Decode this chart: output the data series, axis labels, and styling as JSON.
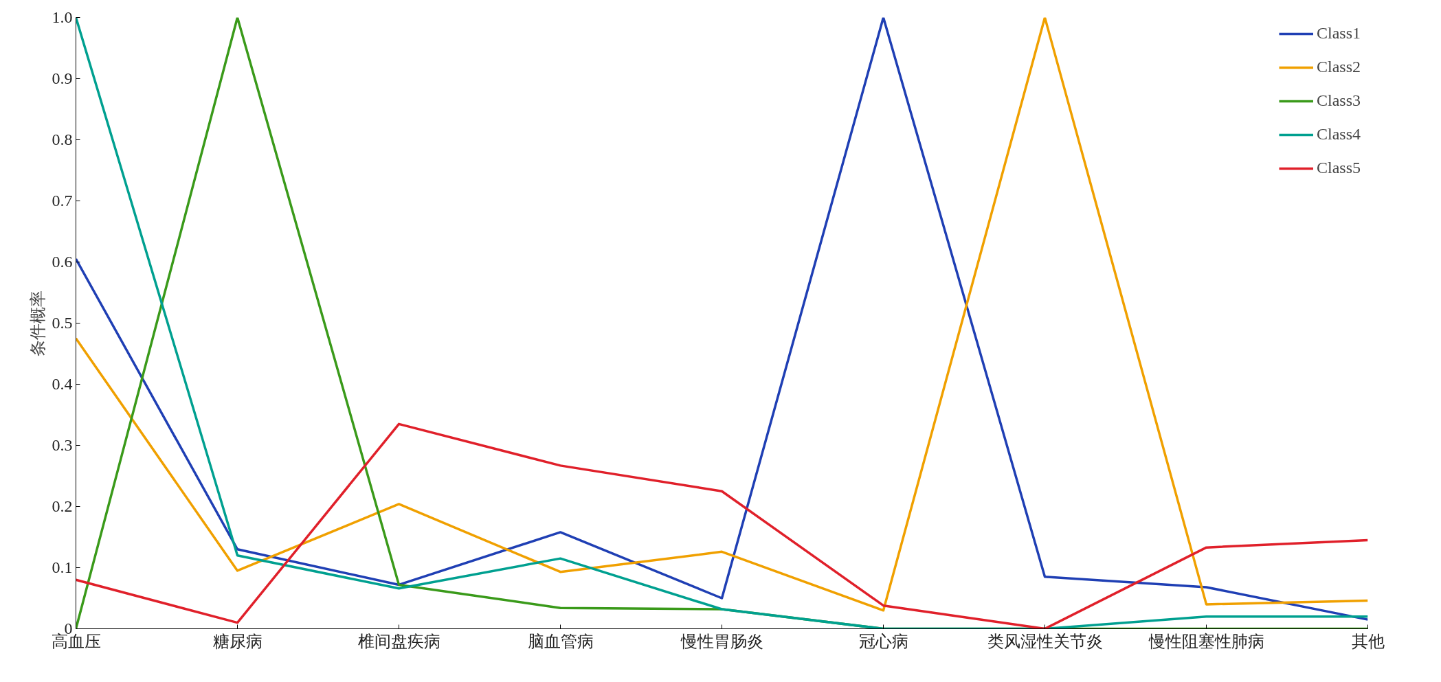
{
  "chart_data": {
    "type": "line",
    "ylabel": "条件概率",
    "categories": [
      "高血压",
      "糖尿病",
      "椎间盘疾病",
      "脑血管病",
      "慢性胃肠炎",
      "冠心病",
      "类风湿性关节炎",
      "慢性阻塞性肺病",
      "其他"
    ],
    "series": [
      {
        "name": "Class1",
        "color": "#1f3fb4",
        "values": [
          0.605,
          0.13,
          0.072,
          0.158,
          0.05,
          1.0,
          0.085,
          0.068,
          0.015
        ]
      },
      {
        "name": "Class2",
        "color": "#f0a000",
        "values": [
          0.475,
          0.095,
          0.204,
          0.093,
          0.126,
          0.03,
          1.0,
          0.04,
          0.046
        ]
      },
      {
        "name": "Class3",
        "color": "#3a9a1a",
        "values": [
          0.0,
          1.0,
          0.072,
          0.034,
          0.032,
          0.0,
          0.0,
          0.0,
          0.0
        ]
      },
      {
        "name": "Class4",
        "color": "#00a090",
        "values": [
          1.0,
          0.12,
          0.066,
          0.115,
          0.032,
          0.0,
          0.0,
          0.02,
          0.02
        ]
      },
      {
        "name": "Class5",
        "color": "#e0202a",
        "values": [
          0.08,
          0.01,
          0.335,
          0.267,
          0.225,
          0.038,
          0.0,
          0.133,
          0.145
        ]
      }
    ],
    "ylim": [
      0,
      1.0
    ],
    "yticks": [
      0,
      0.1,
      0.2,
      0.3,
      0.4,
      0.5,
      0.6,
      0.7,
      0.8,
      0.9,
      {
        "value": 1.0,
        "label": "1.0"
      }
    ],
    "grid": false,
    "legend": "top right",
    "marker": "none",
    "line_style": "solid"
  }
}
